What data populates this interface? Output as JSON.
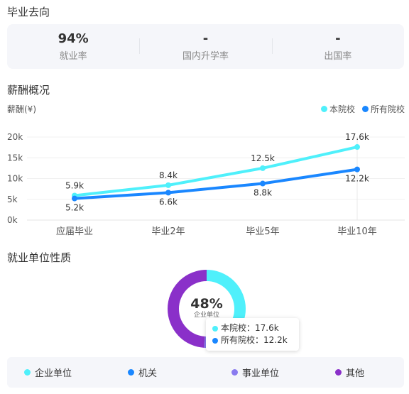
{
  "sections": {
    "destination_title": "毕业去向",
    "salary_title": "薪酬概况",
    "employer_title": "就业单位性质"
  },
  "stats": [
    {
      "value": "94%",
      "label": "就业率"
    },
    {
      "value": "-",
      "label": "国内升学率"
    },
    {
      "value": "-",
      "label": "出国率"
    }
  ],
  "salary_chart": {
    "unit_label": "薪酬(¥)",
    "legend": [
      {
        "name": "本院校",
        "color": "#4ff0fb"
      },
      {
        "name": "所有院校",
        "color": "#1a87ff"
      }
    ]
  },
  "chart_data": {
    "type": "line",
    "categories": [
      "应届毕业",
      "毕业2年",
      "毕业5年",
      "毕业10年"
    ],
    "y_ticks": [
      "0k",
      "5k",
      "10k",
      "15k",
      "20k"
    ],
    "ylim": [
      0,
      20
    ],
    "series": [
      {
        "name": "本院校",
        "color": "#4ff0fb",
        "values": [
          5.9,
          8.4,
          12.5,
          17.6
        ],
        "labels": [
          "5.9k",
          "8.4k",
          "12.5k",
          "17.6k"
        ]
      },
      {
        "name": "所有院校",
        "color": "#1a87ff",
        "values": [
          5.2,
          6.6,
          8.8,
          12.2
        ],
        "labels": [
          "5.2k",
          "6.6k",
          "8.8k",
          "12.2k"
        ]
      }
    ]
  },
  "donut": {
    "percent": "48%",
    "sub_label": "企业单位",
    "segments": [
      {
        "name": "企业单位",
        "color": "#4ff0fb",
        "share": 0.48
      },
      {
        "name": "机关",
        "color": "#1a87ff",
        "share": 0.02
      },
      {
        "name": "事业单位",
        "color": "#8a7bef",
        "share": 0.01
      },
      {
        "name": "其他",
        "color": "#8a30c9",
        "share": 0.49
      }
    ]
  },
  "tooltip": {
    "rows": [
      {
        "label": "本院校：17.6k",
        "color": "#4ff0fb"
      },
      {
        "label": "所有院校：12.2k",
        "color": "#1a87ff"
      }
    ]
  },
  "bottom_legend": [
    {
      "name": "企业单位",
      "color": "#4ff0fb"
    },
    {
      "name": "机关",
      "color": "#1a87ff"
    },
    {
      "name": "事业单位",
      "color": "#8a7bef"
    },
    {
      "name": "其他",
      "color": "#8a30c9"
    }
  ]
}
